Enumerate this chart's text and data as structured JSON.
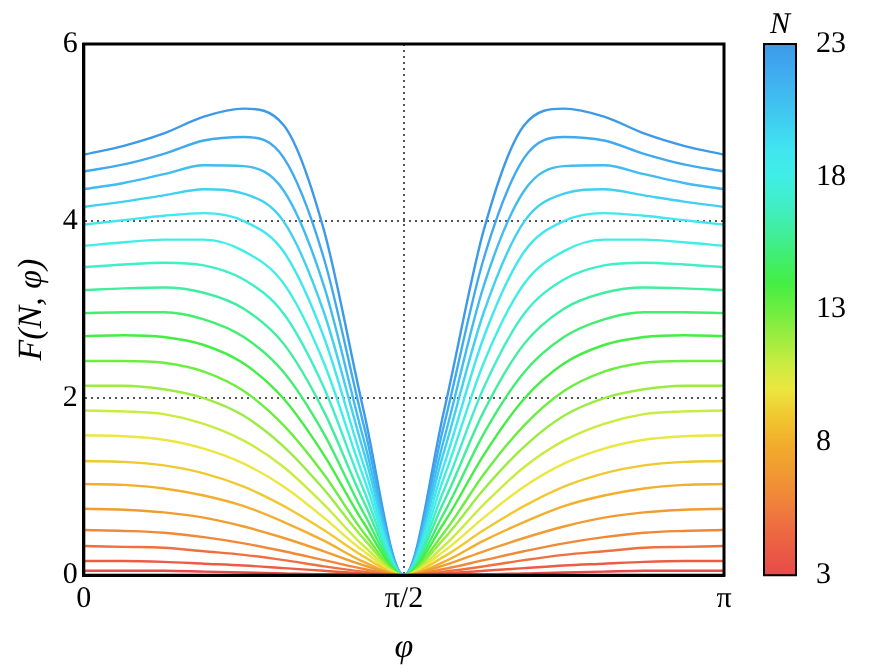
{
  "chart_data": {
    "type": "line",
    "xlabel": "φ",
    "ylabel": "F(N, φ)",
    "clabel": "N",
    "clim": [
      3,
      23
    ],
    "cticks": [
      3,
      8,
      13,
      18,
      23
    ],
    "x": [
      0,
      0.196,
      0.393,
      0.589,
      0.785,
      0.982,
      1.178,
      1.374,
      1.571,
      1.767,
      1.963,
      2.16,
      2.356,
      2.553,
      2.749,
      2.945,
      3.1416
    ],
    "xlim": [
      0,
      3.1416
    ],
    "xticks": [
      0,
      {
        "value": 1.5708,
        "label": "π/2"
      },
      {
        "value": 3.1416,
        "label": "π"
      }
    ],
    "ylim": [
      0,
      6
    ],
    "yticks": [
      0,
      2,
      4,
      6
    ],
    "grid": true,
    "series": [
      {
        "color": "#e84a4a",
        "values": [
          0.05,
          0.05,
          0.05,
          0.04,
          0.03,
          0.02,
          0.01,
          0.01,
          0,
          0.01,
          0.01,
          0.02,
          0.03,
          0.04,
          0.05,
          0.05,
          0.05
        ]
      },
      {
        "color": "#eb5c44",
        "values": [
          0.16,
          0.16,
          0.15,
          0.13,
          0.11,
          0.08,
          0.05,
          0.02,
          0,
          0.02,
          0.05,
          0.08,
          0.11,
          0.13,
          0.15,
          0.16,
          0.16
        ]
      },
      {
        "color": "#ee7040",
        "values": [
          0.33,
          0.32,
          0.31,
          0.27,
          0.23,
          0.17,
          0.1,
          0.04,
          0,
          0.04,
          0.1,
          0.17,
          0.23,
          0.27,
          0.31,
          0.32,
          0.33
        ]
      },
      {
        "color": "#f08838",
        "values": [
          0.51,
          0.5,
          0.48,
          0.43,
          0.36,
          0.27,
          0.17,
          0.07,
          0,
          0.07,
          0.17,
          0.27,
          0.36,
          0.43,
          0.48,
          0.5,
          0.51
        ]
      },
      {
        "color": "#f09c30",
        "values": [
          0.75,
          0.74,
          0.71,
          0.65,
          0.55,
          0.42,
          0.27,
          0.11,
          0,
          0.11,
          0.27,
          0.42,
          0.55,
          0.65,
          0.71,
          0.74,
          0.75
        ]
      },
      {
        "color": "#f2ae2c",
        "values": [
          1.03,
          1.02,
          0.98,
          0.9,
          0.78,
          0.6,
          0.39,
          0.15,
          0,
          0.15,
          0.39,
          0.6,
          0.78,
          0.9,
          0.98,
          1.02,
          1.03
        ]
      },
      {
        "color": "#f0c830",
        "values": [
          1.29,
          1.28,
          1.24,
          1.15,
          1.0,
          0.78,
          0.51,
          0.21,
          0,
          0.21,
          0.51,
          0.78,
          1.0,
          1.15,
          1.24,
          1.28,
          1.29
        ]
      },
      {
        "color": "#ece640",
        "values": [
          1.58,
          1.57,
          1.53,
          1.43,
          1.26,
          1.0,
          0.65,
          0.27,
          0,
          0.27,
          0.65,
          1.0,
          1.26,
          1.43,
          1.53,
          1.57,
          1.58
        ]
      },
      {
        "color": "#c8ec40",
        "values": [
          1.86,
          1.85,
          1.82,
          1.71,
          1.52,
          1.22,
          0.8,
          0.33,
          0,
          0.33,
          0.8,
          1.22,
          1.52,
          1.71,
          1.82,
          1.85,
          1.86
        ]
      },
      {
        "color": "#9aec40",
        "values": [
          2.14,
          2.14,
          2.1,
          2.0,
          1.8,
          1.45,
          0.97,
          0.41,
          0,
          0.41,
          0.97,
          1.45,
          1.8,
          2.0,
          2.1,
          2.14,
          2.14
        ]
      },
      {
        "color": "#6cee40",
        "values": [
          2.42,
          2.42,
          2.4,
          2.3,
          2.08,
          1.69,
          1.14,
          0.48,
          0,
          0.48,
          1.14,
          1.69,
          2.08,
          2.3,
          2.4,
          2.42,
          2.42
        ]
      },
      {
        "color": "#44ee44",
        "values": [
          2.7,
          2.71,
          2.69,
          2.6,
          2.39,
          1.99,
          1.36,
          0.59,
          0,
          0.59,
          1.36,
          1.99,
          2.39,
          2.6,
          2.69,
          2.71,
          2.7
        ]
      },
      {
        "color": "#40ee70",
        "values": [
          2.96,
          2.97,
          2.97,
          2.89,
          2.69,
          2.29,
          1.6,
          0.7,
          0,
          0.7,
          1.6,
          2.29,
          2.69,
          2.89,
          2.97,
          2.97,
          2.96
        ]
      },
      {
        "color": "#40eea0",
        "values": [
          3.22,
          3.24,
          3.25,
          3.19,
          3.01,
          2.61,
          1.85,
          0.83,
          0,
          0.83,
          1.85,
          2.61,
          3.01,
          3.19,
          3.25,
          3.24,
          3.22
        ]
      },
      {
        "color": "#40eec8",
        "values": [
          3.48,
          3.51,
          3.53,
          3.5,
          3.34,
          2.95,
          2.12,
          0.96,
          0,
          0.96,
          2.12,
          2.95,
          3.34,
          3.5,
          3.53,
          3.51,
          3.48
        ]
      },
      {
        "color": "#40eee6",
        "values": [
          3.72,
          3.76,
          3.79,
          3.79,
          3.66,
          3.29,
          2.4,
          1.1,
          0,
          1.1,
          2.4,
          3.29,
          3.66,
          3.79,
          3.79,
          3.76,
          3.72
        ]
      },
      {
        "color": "#40e6f0",
        "values": [
          3.96,
          4.01,
          4.06,
          4.09,
          4.0,
          3.65,
          2.69,
          1.24,
          0,
          1.24,
          2.69,
          3.65,
          4.0,
          4.09,
          4.06,
          4.01,
          3.96
        ]
      },
      {
        "color": "#40d0f0",
        "values": [
          4.16,
          4.22,
          4.29,
          4.36,
          4.31,
          3.99,
          2.97,
          1.39,
          0,
          1.39,
          2.97,
          3.99,
          4.31,
          4.36,
          4.29,
          4.22,
          4.16
        ]
      },
      {
        "color": "#40bcf0",
        "values": [
          4.36,
          4.43,
          4.53,
          4.63,
          4.62,
          4.34,
          3.27,
          1.53,
          0,
          1.53,
          3.27,
          4.34,
          4.62,
          4.63,
          4.53,
          4.43,
          4.36
        ]
      },
      {
        "color": "#40aaf0",
        "values": [
          4.56,
          4.64,
          4.76,
          4.91,
          4.95,
          4.71,
          3.58,
          1.69,
          0,
          1.69,
          3.58,
          4.71,
          4.95,
          4.91,
          4.76,
          4.64,
          4.56
        ]
      },
      {
        "color": "#3c9ae8",
        "values": [
          4.75,
          4.85,
          4.99,
          5.18,
          5.27,
          5.08,
          3.9,
          1.85,
          0,
          1.85,
          3.9,
          5.08,
          5.27,
          5.18,
          4.99,
          4.85,
          4.75
        ]
      }
    ]
  }
}
